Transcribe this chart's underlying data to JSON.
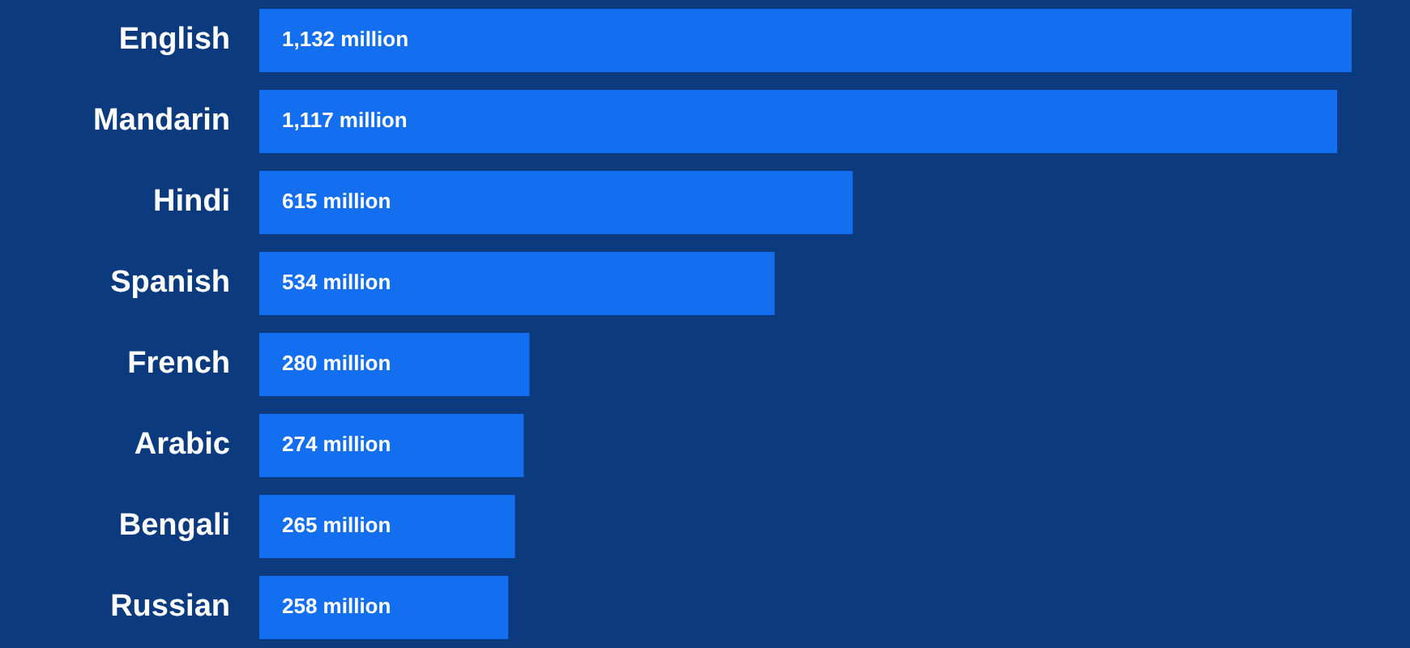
{
  "chart_data": {
    "type": "bar",
    "orientation": "horizontal",
    "categories": [
      "English",
      "Mandarin",
      "Hindi",
      "Spanish",
      "French",
      "Arabic",
      "Bengali",
      "Russian"
    ],
    "values": [
      1132,
      1117,
      615,
      534,
      280,
      274,
      265,
      258
    ],
    "value_labels": [
      "1,132 million",
      "1,117 million",
      "615 million",
      "534 million",
      "280 million",
      "274 million",
      "265 million",
      "258 million"
    ],
    "color": "#136ef0",
    "xlim": [
      0,
      1132
    ],
    "tick_labels": "y"
  }
}
